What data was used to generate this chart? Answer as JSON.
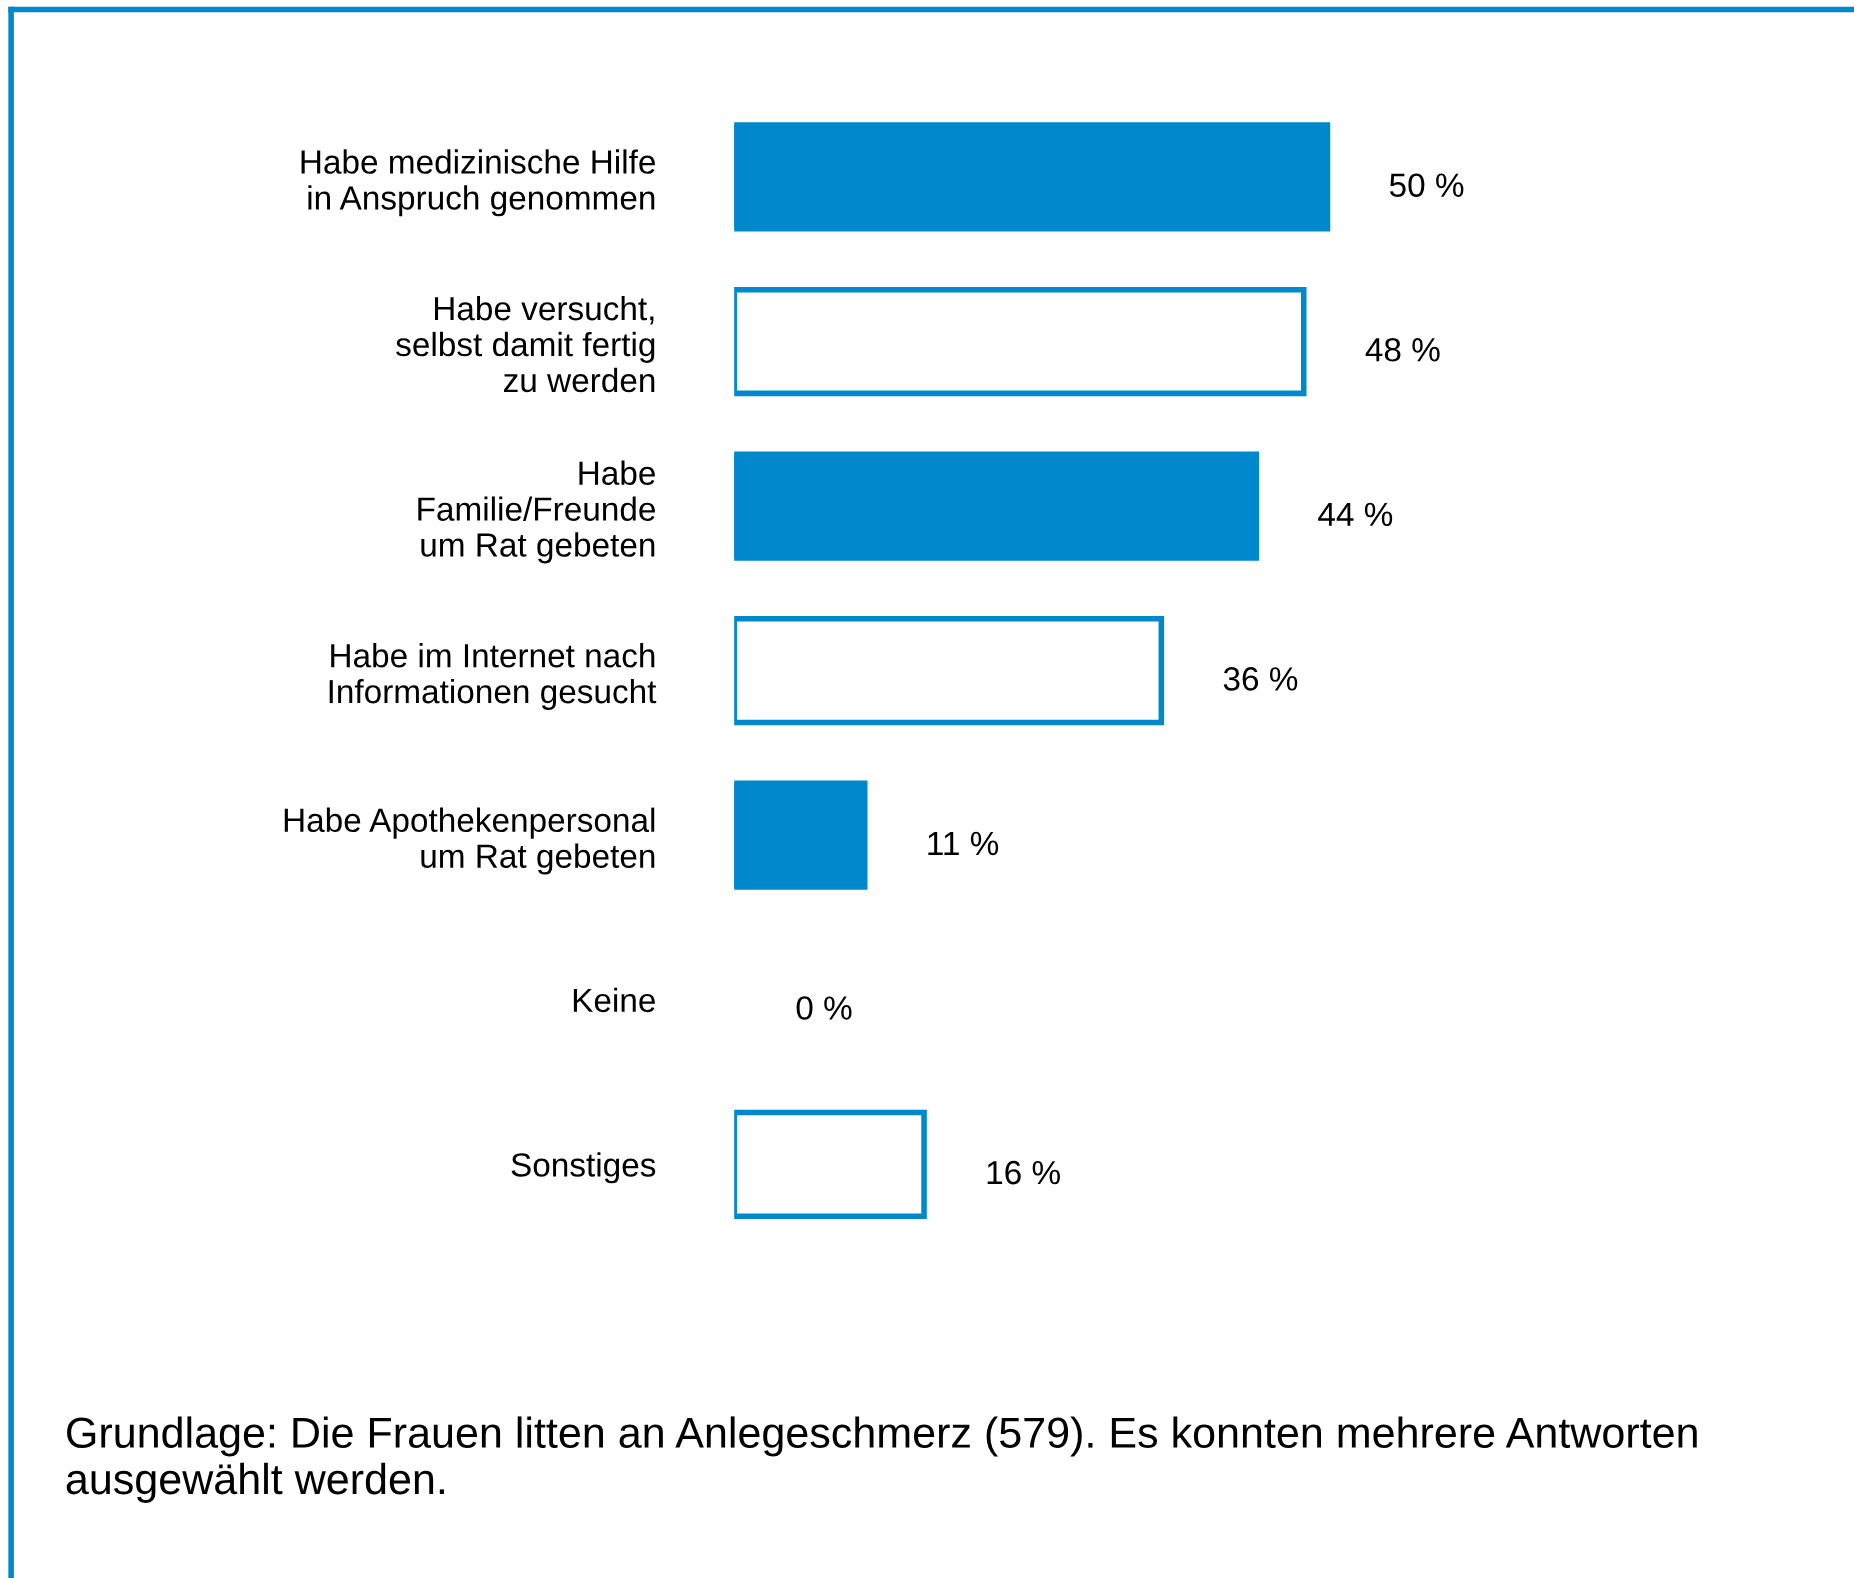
{
  "chart_data": {
    "type": "bar",
    "orientation": "horizontal",
    "categories": [
      "Habe medizinische Hilfe\nin Anspruch genommen",
      "Habe versucht,\nselbst damit fertig\nzu werden",
      "Habe\nFamilie/Freunde\num Rat gebeten",
      "Habe im Internet nach\nInformationen gesucht",
      "Habe Apothekenpersonal\num Rat gebeten",
      "Keine",
      "Sonstiges"
    ],
    "values": [
      50,
      48,
      44,
      36,
      11,
      0,
      16
    ],
    "value_labels": [
      "50 %",
      "48 %",
      "44 %",
      "36 %",
      "11 %",
      "0 %",
      "16 %"
    ],
    "color": "#0088cc",
    "colors": [
      "#0088cc",
      "#ffffff",
      "#0088cc",
      "#ffffff",
      "#0088cc",
      "#ffffff",
      "#ffffff"
    ],
    "annotations": [
      "Grundlage: Die Frauen litten an Anlegeschmerz (579). Es konnten mehrere Antworten ausgewählt werden."
    ],
    "grid": false,
    "legend": false
  }
}
